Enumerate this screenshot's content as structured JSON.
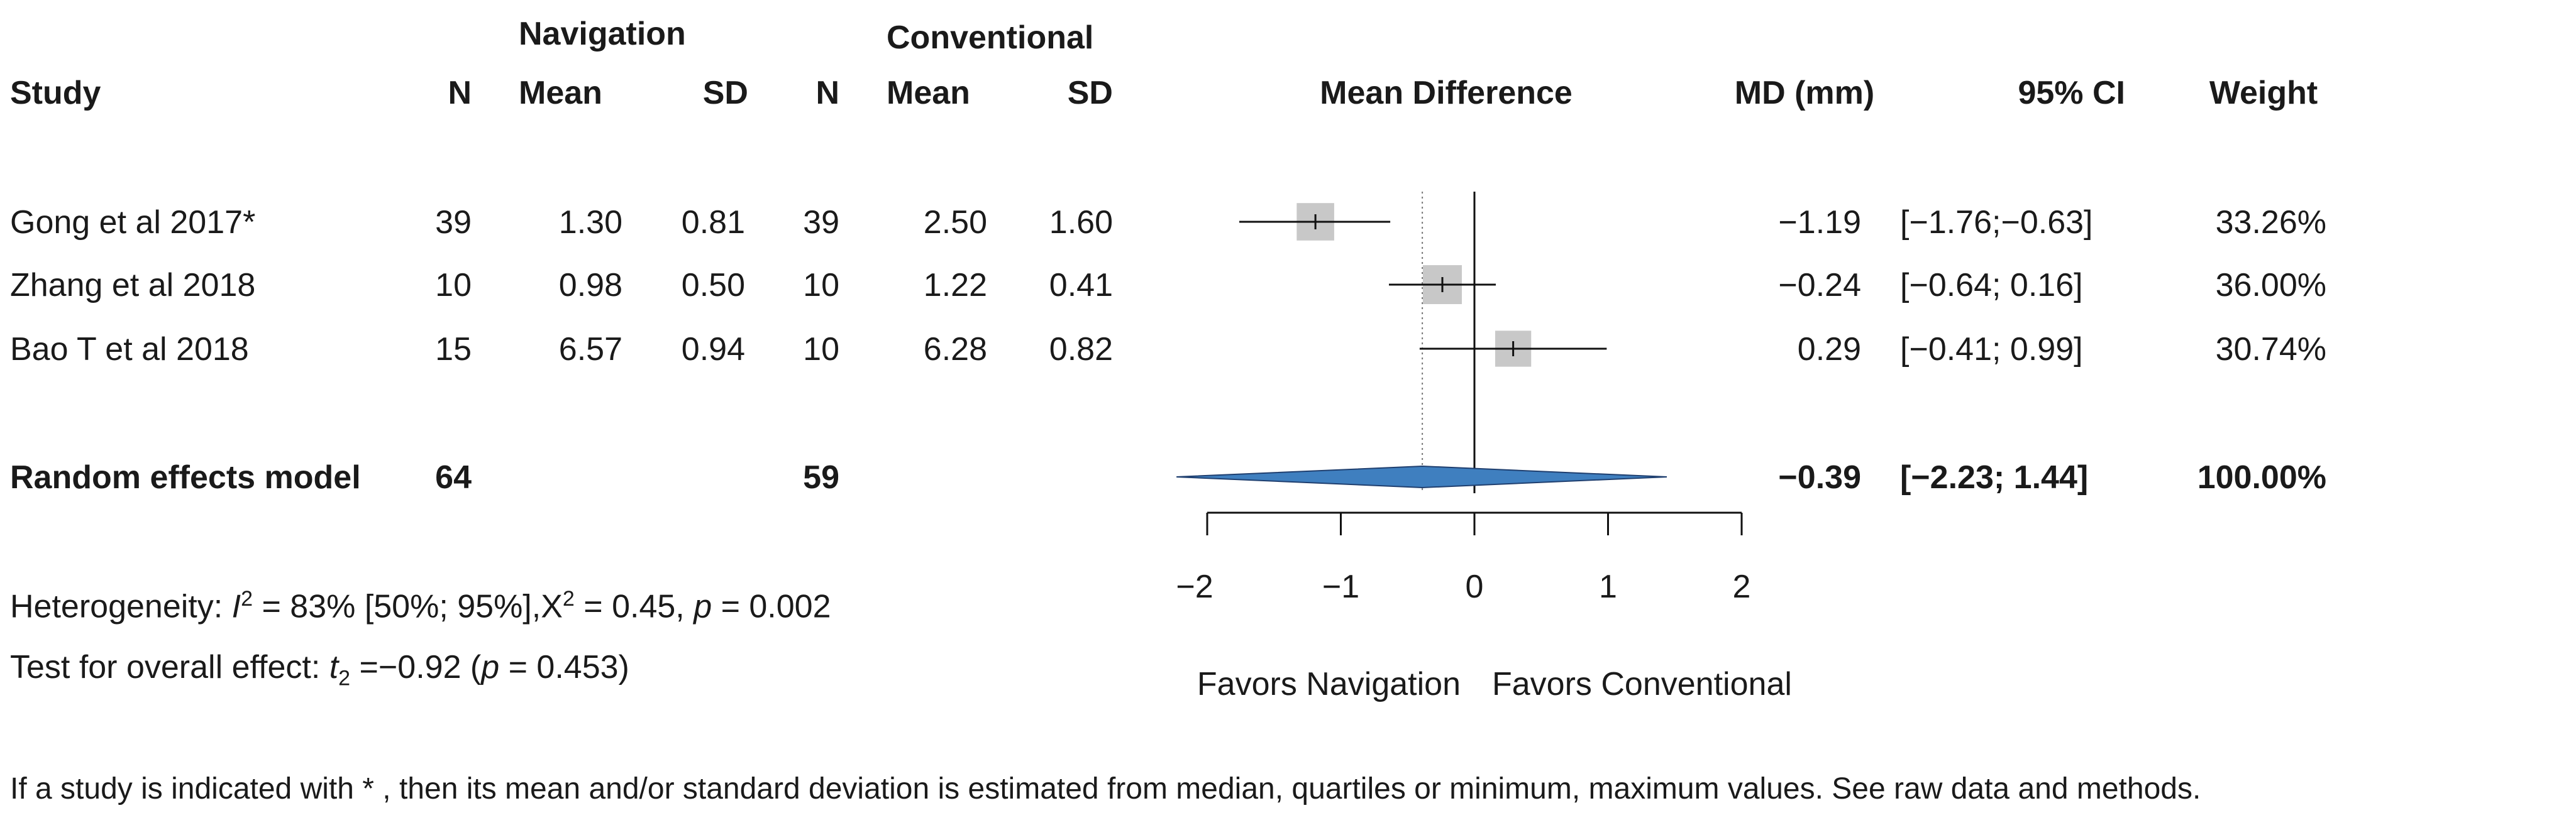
{
  "header": {
    "group_nav": "Navigation",
    "group_conv": "Conventional",
    "col_study": "Study",
    "col_n": "N",
    "col_mean": "Mean",
    "col_sd": "SD",
    "col_md_plot": "Mean Difference",
    "col_md": "MD (mm)",
    "col_ci": "95% CI",
    "col_weight": "Weight"
  },
  "studies": [
    {
      "study": "Gong et al 2017*",
      "n_nav": "39",
      "mean_nav": "1.30",
      "sd_nav": "0.81",
      "n_conv": "39",
      "mean_conv": "2.50",
      "sd_conv": "1.60",
      "md": "−1.19",
      "ci": "[−1.76;−0.63]",
      "weight": "33.26%"
    },
    {
      "study": "Zhang et al 2018",
      "n_nav": "10",
      "mean_nav": "0.98",
      "sd_nav": "0.50",
      "n_conv": "10",
      "mean_conv": "1.22",
      "sd_conv": "0.41",
      "md": "−0.24",
      "ci": "[−0.64; 0.16]",
      "weight": "36.00%"
    },
    {
      "study": "Bao T et al 2018",
      "n_nav": "15",
      "mean_nav": "6.57",
      "sd_nav": "0.94",
      "n_conv": "10",
      "mean_conv": "6.28",
      "sd_conv": "0.82",
      "md": "0.29",
      "ci": "[−0.41; 0.99]",
      "weight": "30.74%"
    }
  ],
  "summary": {
    "label": "Random effects model",
    "n_nav": "64",
    "n_conv": "59",
    "md": "−0.39",
    "ci": "[−2.23; 1.44]",
    "weight": "100.00%"
  },
  "heterogeneity": {
    "prefix": "Heterogeneity: ",
    "i_symbol": "I",
    "i_power": "2",
    "i_rest": " = 83% [50%; 95%],",
    "chi_symbol": "Χ",
    "chi_power": "2",
    "chi_rest": " = 0.45, ",
    "p_symbol": "p",
    "p_rest": " = 0.002"
  },
  "overall_test": {
    "prefix": "Test for overall effect: ",
    "t_symbol": "t",
    "t_sub": "2",
    "t_rest": " =−0.92 (",
    "p_symbol": "p",
    "p_rest": " = 0.453)"
  },
  "footnote": "If a study is indicated with * , then its mean and/or standard deviation is estimated from median, quartiles or minimum, maximum values. See raw data and methods.",
  "colors": {
    "text": "#1a1a1a",
    "square": "#c8c8c8",
    "diamond": "#3f7fbf",
    "diamond_edge": "#1f3f6f",
    "line": "#111111",
    "dotted": "#777777"
  },
  "chart_data": {
    "type": "forest",
    "title": "Mean Difference",
    "xlabel_left": "Favors Navigation",
    "xlabel_right": "Favors Conventional",
    "xlim": [
      -2,
      2
    ],
    "ticks": [
      -2,
      -1,
      0,
      1,
      2
    ],
    "tick_labels": [
      "−2",
      "−1",
      "0",
      "1",
      "2"
    ],
    "null_value": 0,
    "pooled_reference": -0.39,
    "studies": [
      {
        "name": "Gong et al 2017*",
        "md": -1.19,
        "lower": -1.76,
        "upper": -0.63,
        "weight": 33.26
      },
      {
        "name": "Zhang et al 2018",
        "md": -0.24,
        "lower": -0.64,
        "upper": 0.16,
        "weight": 36.0
      },
      {
        "name": "Bao T et al 2018",
        "md": 0.29,
        "lower": -0.41,
        "upper": 0.99,
        "weight": 30.74
      }
    ],
    "pooled": {
      "name": "Random effects model",
      "md": -0.39,
      "lower": -2.23,
      "upper": 1.44
    }
  }
}
